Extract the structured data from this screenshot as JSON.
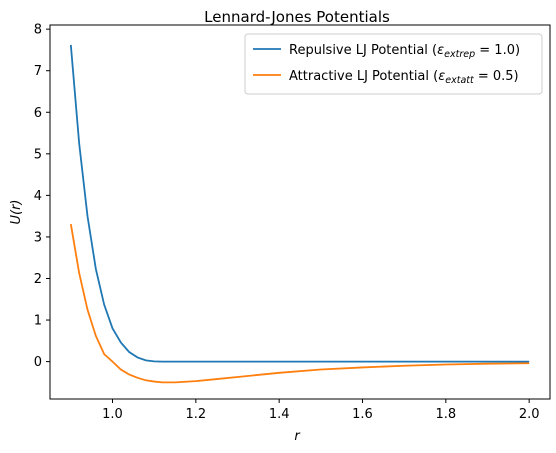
{
  "chart_data": {
    "type": "line",
    "title": "Lennard-Jones Potentials",
    "xlabel": "r",
    "ylabel": "U(r)",
    "xlim": [
      0.85,
      2.05
    ],
    "ylim": [
      -0.9,
      8.1
    ],
    "xticks": [
      1.0,
      1.2,
      1.4,
      1.6,
      1.8,
      2.0
    ],
    "xtick_labels": [
      "1.0",
      "1.2",
      "1.4",
      "1.6",
      "1.8",
      "2.0"
    ],
    "yticks": [
      0,
      1,
      2,
      3,
      4,
      5,
      6,
      7,
      8
    ],
    "ytick_labels": [
      "0",
      "1",
      "2",
      "3",
      "4",
      "5",
      "6",
      "7",
      "8"
    ],
    "grid": false,
    "legend_position": "top-right",
    "series": [
      {
        "name": "Repulsive LJ Potential (ε_extrep = 1.0)",
        "color": "#1f77b4",
        "x": [
          0.9,
          0.92,
          0.94,
          0.96,
          0.98,
          1.0,
          1.02,
          1.04,
          1.06,
          1.08,
          1.1,
          1.12,
          1.2,
          1.4,
          1.6,
          1.8,
          2.0
        ],
        "y": [
          7.62,
          5.25,
          3.5,
          2.23,
          1.37,
          0.8,
          0.46,
          0.23,
          0.1,
          0.03,
          0.005,
          0.0,
          0.0,
          0.0,
          0.0,
          0.0,
          0.0
        ]
      },
      {
        "name": "Attractive LJ Potential (ε_extatt = 0.5)",
        "color": "#ff7f0e",
        "x": [
          0.9,
          0.92,
          0.94,
          0.96,
          0.98,
          1.0,
          1.02,
          1.04,
          1.06,
          1.08,
          1.1,
          1.12,
          1.15,
          1.2,
          1.25,
          1.3,
          1.4,
          1.5,
          1.6,
          1.7,
          1.8,
          1.9,
          2.0
        ],
        "y": [
          3.31,
          2.13,
          1.25,
          0.62,
          0.18,
          0.0,
          -0.19,
          -0.31,
          -0.39,
          -0.45,
          -0.48,
          -0.5,
          -0.5,
          -0.47,
          -0.42,
          -0.37,
          -0.27,
          -0.19,
          -0.14,
          -0.1,
          -0.07,
          -0.05,
          -0.04
        ]
      }
    ]
  },
  "legend": {
    "entries": [
      {
        "prefix": "Repulsive LJ Potential (",
        "symbol": "ε",
        "subscript": "extrep",
        "suffix": " = 1.0)"
      },
      {
        "prefix": "Attractive LJ Potential (",
        "symbol": "ε",
        "subscript": "extatt",
        "suffix": " = 0.5)"
      }
    ]
  }
}
